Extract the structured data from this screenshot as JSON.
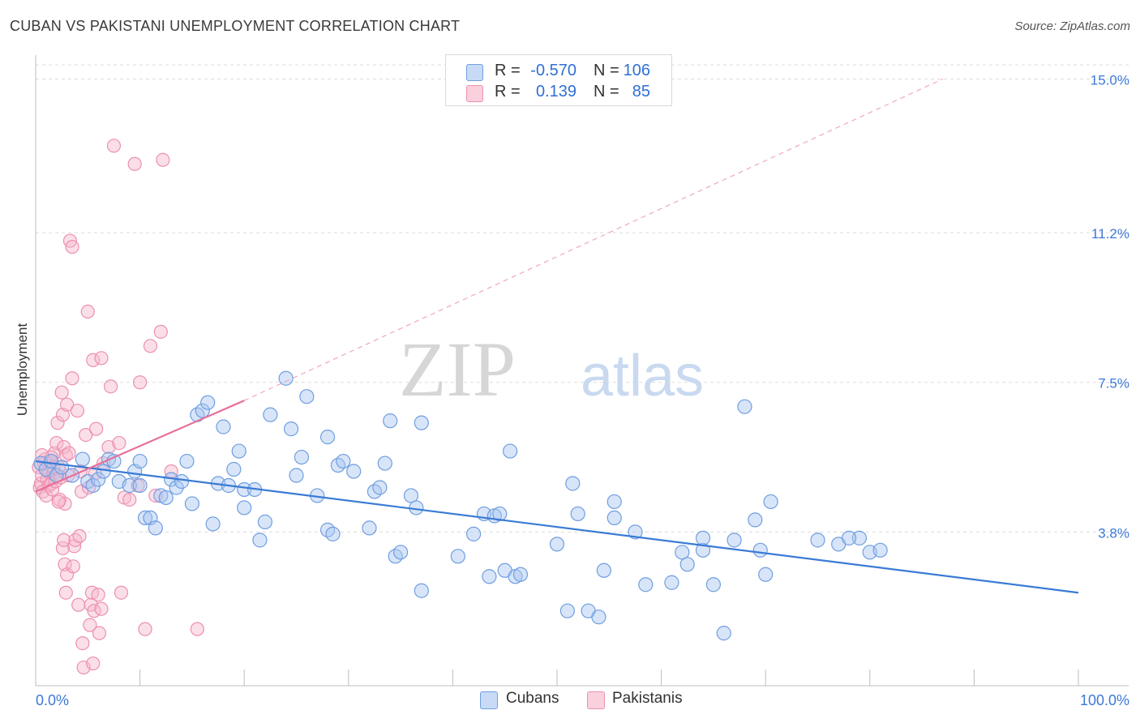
{
  "title": "CUBAN VS PAKISTANI UNEMPLOYMENT CORRELATION CHART",
  "source": "Source: ZipAtlas.com",
  "watermark": {
    "zip": "ZIP",
    "atlas": "atlas"
  },
  "legend_top": [
    {
      "swatch_color": "#a9c6f1",
      "r_label": "R =",
      "r_value": "-0.570",
      "n_label": "N =",
      "n_value": "106"
    },
    {
      "swatch_color": "#f6b8cb",
      "r_label": "R =",
      "r_value": "0.139",
      "n_label": "N =",
      "n_value": "85"
    }
  ],
  "legend_bottom": [
    {
      "label": "Cubans",
      "swatch_color": "#a9c6f1"
    },
    {
      "label": "Pakistanis",
      "swatch_color": "#f6b8cb"
    }
  ],
  "chart_data": {
    "type": "scatter",
    "ylabel": "Unemployment",
    "xlabel": "",
    "x_tick_labels": [
      "0.0%",
      "100.0%"
    ],
    "y_tick_labels": [
      "3.8%",
      "7.5%",
      "11.2%",
      "15.0%"
    ],
    "y_ticks": [
      3.8,
      7.5,
      11.2,
      15.0
    ],
    "xlim": [
      0,
      100
    ],
    "ylim": [
      0.0,
      15.35
    ],
    "grid": true,
    "colors": {
      "cubans": "#3a7bd5",
      "pakistanis": "#e8709a",
      "cubans_fill": "#a9c6f1",
      "pakistanis_fill": "#f6b8cb"
    },
    "series": [
      {
        "name": "Cubans",
        "trend": {
          "x0": 0,
          "y0": 5.55,
          "x1": 100,
          "y1": 2.3
        },
        "points": [
          [
            0.5,
            5.5
          ],
          [
            1,
            5.35
          ],
          [
            1.5,
            5.55
          ],
          [
            2,
            5.2
          ],
          [
            2.5,
            5.4
          ],
          [
            3.5,
            5.2
          ],
          [
            4.5,
            5.6
          ],
          [
            5,
            5.05
          ],
          [
            5.5,
            4.95
          ],
          [
            6,
            5.1
          ],
          [
            6.5,
            5.3
          ],
          [
            7,
            5.6
          ],
          [
            7.5,
            5.55
          ],
          [
            8,
            5.05
          ],
          [
            9,
            4.95
          ],
          [
            9.5,
            5.3
          ],
          [
            10,
            5.55
          ],
          [
            10,
            4.95
          ],
          [
            10.5,
            4.15
          ],
          [
            11,
            4.15
          ],
          [
            11.5,
            3.9
          ],
          [
            12,
            4.7
          ],
          [
            12.5,
            4.65
          ],
          [
            13,
            5.1
          ],
          [
            13.5,
            4.9
          ],
          [
            14,
            5.05
          ],
          [
            14.5,
            5.55
          ],
          [
            15,
            4.5
          ],
          [
            15.5,
            6.7
          ],
          [
            16,
            6.8
          ],
          [
            16.5,
            7.0
          ],
          [
            17,
            4.0
          ],
          [
            17.5,
            5.0
          ],
          [
            18,
            6.4
          ],
          [
            18.5,
            4.95
          ],
          [
            19,
            5.35
          ],
          [
            19.5,
            5.8
          ],
          [
            20,
            4.4
          ],
          [
            20,
            4.85
          ],
          [
            21,
            4.85
          ],
          [
            21.5,
            3.6
          ],
          [
            22,
            4.05
          ],
          [
            22.5,
            6.7
          ],
          [
            24,
            7.6
          ],
          [
            24.5,
            6.35
          ],
          [
            25,
            5.2
          ],
          [
            25.5,
            5.65
          ],
          [
            26,
            7.15
          ],
          [
            27,
            4.7
          ],
          [
            28,
            6.15
          ],
          [
            28,
            3.85
          ],
          [
            28.5,
            3.75
          ],
          [
            29,
            5.45
          ],
          [
            29.5,
            5.55
          ],
          [
            30.5,
            5.3
          ],
          [
            32,
            3.9
          ],
          [
            32.5,
            4.8
          ],
          [
            33,
            4.9
          ],
          [
            33.5,
            5.5
          ],
          [
            34,
            6.55
          ],
          [
            34.5,
            3.2
          ],
          [
            35,
            3.3
          ],
          [
            36,
            4.7
          ],
          [
            36.5,
            4.4
          ],
          [
            37,
            6.5
          ],
          [
            37,
            2.35
          ],
          [
            40.5,
            3.2
          ],
          [
            42,
            3.75
          ],
          [
            43,
            4.25
          ],
          [
            43.5,
            2.7
          ],
          [
            44,
            4.2
          ],
          [
            44.5,
            4.25
          ],
          [
            45,
            2.85
          ],
          [
            46,
            2.7
          ],
          [
            46.5,
            2.75
          ],
          [
            45.5,
            5.8
          ],
          [
            50,
            3.5
          ],
          [
            51,
            1.85
          ],
          [
            51.5,
            5.0
          ],
          [
            52,
            4.25
          ],
          [
            53,
            1.85
          ],
          [
            54,
            1.7
          ],
          [
            54.5,
            2.85
          ],
          [
            55.5,
            4.15
          ],
          [
            55.5,
            4.55
          ],
          [
            57.5,
            3.8
          ],
          [
            58.5,
            2.5
          ],
          [
            61,
            2.55
          ],
          [
            62,
            3.3
          ],
          [
            62.5,
            3.0
          ],
          [
            64,
            3.35
          ],
          [
            64,
            3.65
          ],
          [
            65,
            2.5
          ],
          [
            66,
            1.3
          ],
          [
            67,
            3.6
          ],
          [
            68,
            6.9
          ],
          [
            69,
            4.1
          ],
          [
            69.5,
            3.35
          ],
          [
            70,
            2.75
          ],
          [
            70.5,
            4.55
          ],
          [
            75,
            3.6
          ],
          [
            79,
            3.65
          ],
          [
            80,
            3.3
          ],
          [
            81,
            3.35
          ],
          [
            77,
            3.5
          ],
          [
            78,
            3.65
          ]
        ]
      },
      {
        "name": "Pakistanis",
        "trend": {
          "x0": 0,
          "y0": 4.8,
          "x1": 20,
          "y1": 7.05
        },
        "trend_extended": {
          "x0": 20,
          "y0": 7.05,
          "x1": 87,
          "y1": 15.0
        },
        "points": [
          [
            0.3,
            5.4
          ],
          [
            0.4,
            4.9
          ],
          [
            0.5,
            5.0
          ],
          [
            0.6,
            5.2
          ],
          [
            0.7,
            4.8
          ],
          [
            0.8,
            5.5
          ],
          [
            0.9,
            5.6
          ],
          [
            1.0,
            4.7
          ],
          [
            1.1,
            5.1
          ],
          [
            1.2,
            5.3
          ],
          [
            1.3,
            4.95
          ],
          [
            1.4,
            5.55
          ],
          [
            1.5,
            5.0
          ],
          [
            1.6,
            4.85
          ],
          [
            1.7,
            5.25
          ],
          [
            1.8,
            5.75
          ],
          [
            1.9,
            5.05
          ],
          [
            2.0,
            6.0
          ],
          [
            2.1,
            6.5
          ],
          [
            2.2,
            5.4
          ],
          [
            2.3,
            4.6
          ],
          [
            2.4,
            5.15
          ],
          [
            2.5,
            7.25
          ],
          [
            2.6,
            6.7
          ],
          [
            2.7,
            5.9
          ],
          [
            2.8,
            4.5
          ],
          [
            2.9,
            5.7
          ],
          [
            3.0,
            6.95
          ],
          [
            3.1,
            5.2
          ],
          [
            3.2,
            5.75
          ],
          [
            2.6,
            3.4
          ],
          [
            2.7,
            3.6
          ],
          [
            2.8,
            3.0
          ],
          [
            2.9,
            2.3
          ],
          [
            3.0,
            2.75
          ],
          [
            3.3,
            11.0
          ],
          [
            3.5,
            7.6
          ],
          [
            3.6,
            2.95
          ],
          [
            3.7,
            3.45
          ],
          [
            3.8,
            3.6
          ],
          [
            3.5,
            10.85
          ],
          [
            4.0,
            6.8
          ],
          [
            4.1,
            2.0
          ],
          [
            4.2,
            3.7
          ],
          [
            4.3,
            5.3
          ],
          [
            4.4,
            4.8
          ],
          [
            4.5,
            1.05
          ],
          [
            4.6,
            0.45
          ],
          [
            4.8,
            6.2
          ],
          [
            5.0,
            9.25
          ],
          [
            5.1,
            4.9
          ],
          [
            5.2,
            1.5
          ],
          [
            5.3,
            2.0
          ],
          [
            5.4,
            2.3
          ],
          [
            5.5,
            0.55
          ],
          [
            5.5,
            8.05
          ],
          [
            5.6,
            1.85
          ],
          [
            5.7,
            5.25
          ],
          [
            6.0,
            2.25
          ],
          [
            6.1,
            1.3
          ],
          [
            5.8,
            6.35
          ],
          [
            6.3,
            1.9
          ],
          [
            6.5,
            5.5
          ],
          [
            6.3,
            8.1
          ],
          [
            7.0,
            5.9
          ],
          [
            7.2,
            7.4
          ],
          [
            7.5,
            13.35
          ],
          [
            8.0,
            6.0
          ],
          [
            8.2,
            2.3
          ],
          [
            8.5,
            4.65
          ],
          [
            9.0,
            4.6
          ],
          [
            9.5,
            12.9
          ],
          [
            10.0,
            7.5
          ],
          [
            10.5,
            1.4
          ],
          [
            9.8,
            4.95
          ],
          [
            11.0,
            8.4
          ],
          [
            11.5,
            4.7
          ],
          [
            12.0,
            8.75
          ],
          [
            12.2,
            13.0
          ],
          [
            13.0,
            5.3
          ],
          [
            15.5,
            1.4
          ],
          [
            1.5,
            5.65
          ],
          [
            0.6,
            5.7
          ],
          [
            1.7,
            5.4
          ],
          [
            2.2,
            4.55
          ]
        ]
      }
    ]
  }
}
